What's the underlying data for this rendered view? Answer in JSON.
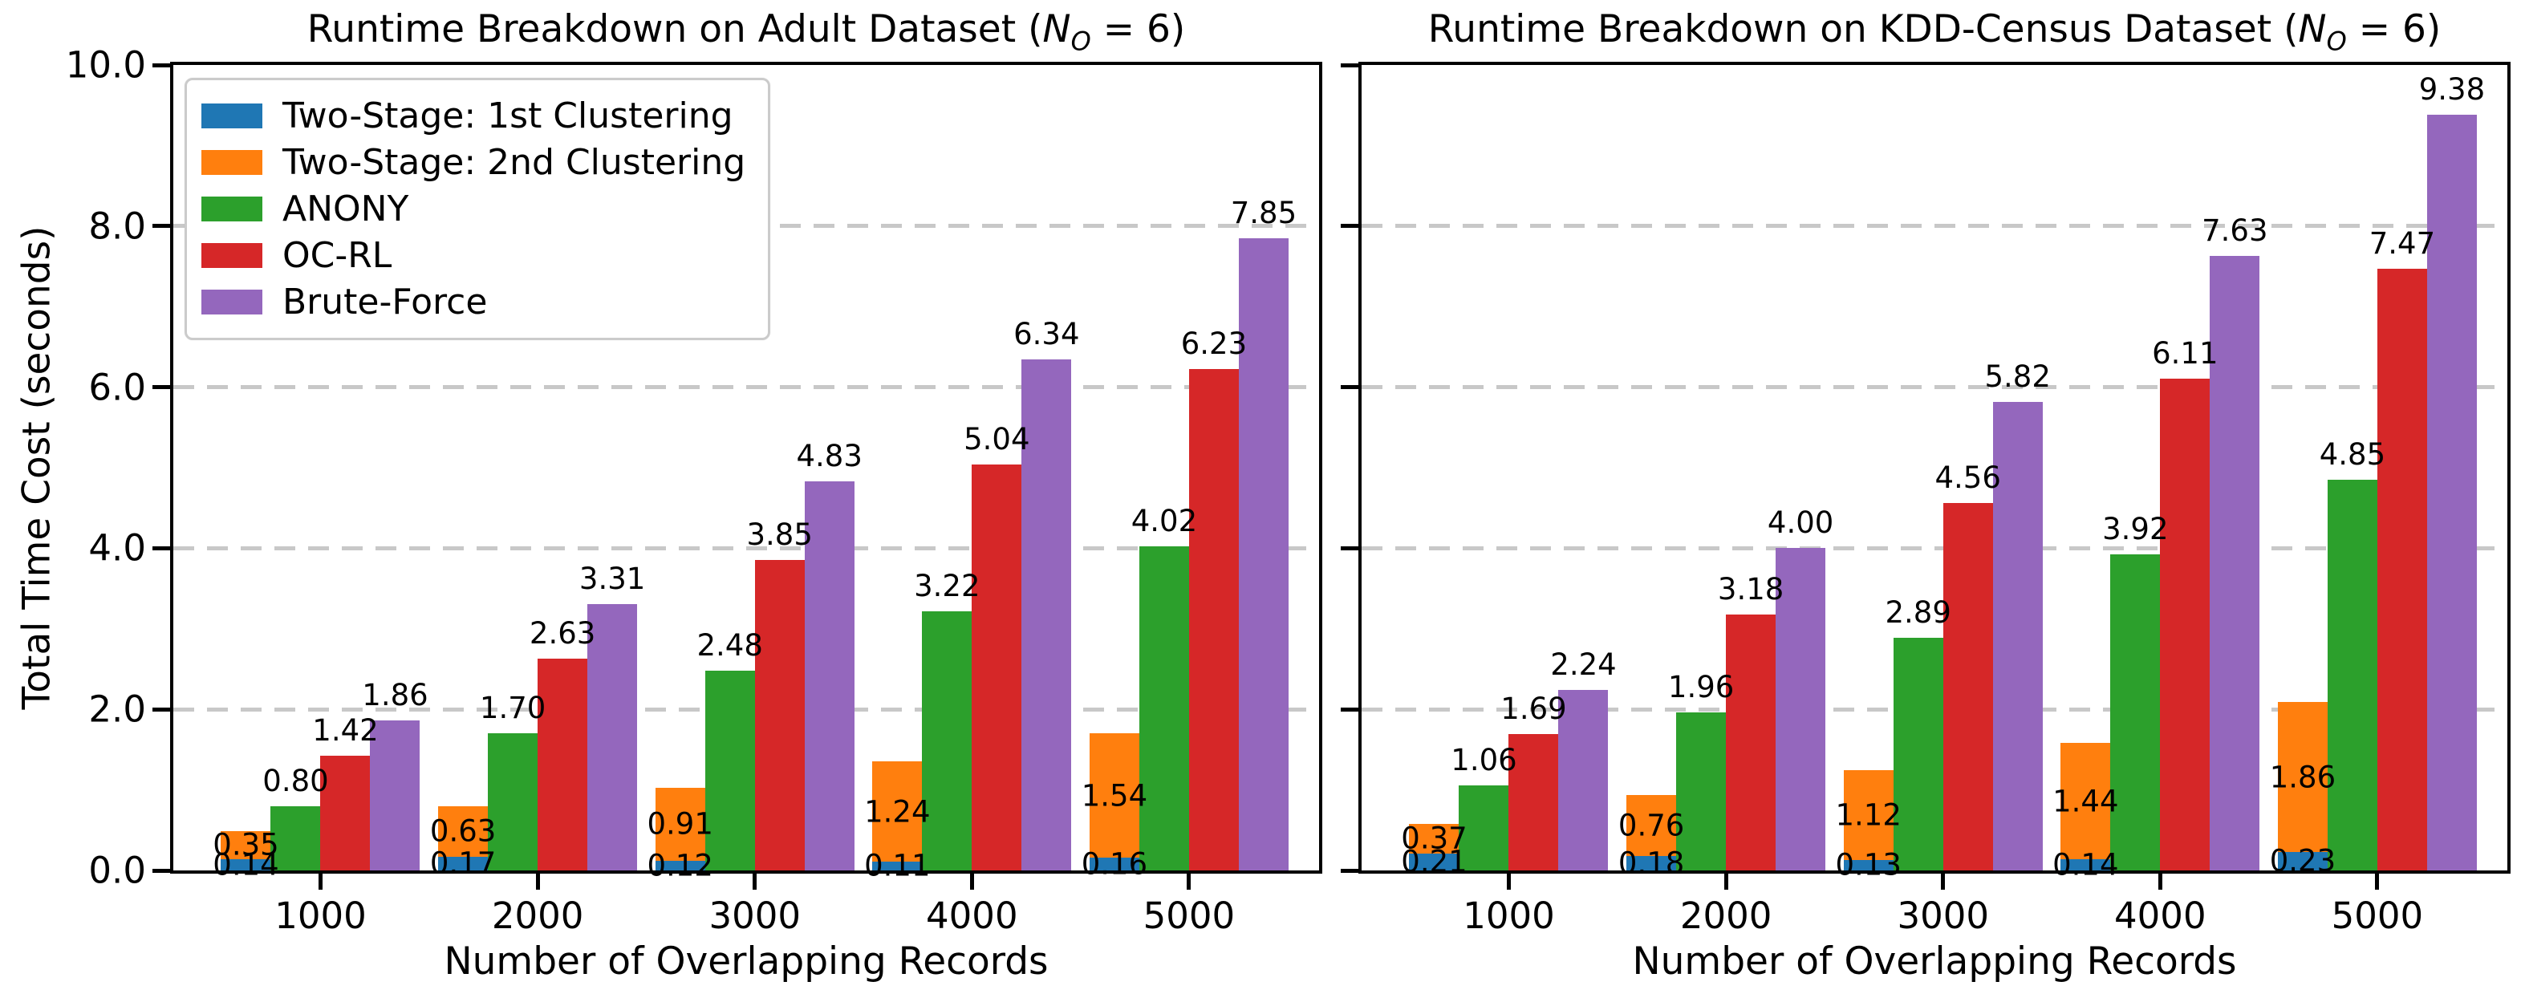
{
  "figure": {
    "background": "#ffffff",
    "ylabel": "Total Time Cost (seconds)",
    "xlabel": "Number of Overlapping Records",
    "legend": {
      "position": "upper-left of left chart",
      "items": [
        {
          "label": "Two-Stage: 1st Clustering",
          "color": "#1f77b4"
        },
        {
          "label": "Two-Stage: 2nd Clustering",
          "color": "#ff7f0e"
        },
        {
          "label": "ANONY",
          "color": "#2ca02c"
        },
        {
          "label": "OC-RL",
          "color": "#d62728"
        },
        {
          "label": "Brute-Force",
          "color": "#9467bd"
        }
      ]
    }
  },
  "chart_data": [
    {
      "type": "bar",
      "title": {
        "prefix": "Runtime Breakdown on Adult Dataset (",
        "var": "N",
        "sub": "O",
        "suffix": " = 6)"
      },
      "title_plain": "Runtime Breakdown on Adult Dataset (N_O = 6)",
      "xlabel": "Number of Overlapping Records",
      "ylabel": "Total Time Cost (seconds)",
      "categories": [
        "1000",
        "2000",
        "3000",
        "4000",
        "5000"
      ],
      "ylim": [
        0,
        10
      ],
      "yticks": [
        "0.0",
        "2.0",
        "4.0",
        "6.0",
        "8.0",
        "10.0"
      ],
      "grid": {
        "axis": "y",
        "style": "dashed",
        "color": "#c8c8c8"
      },
      "layout_note": "series 0 stacked under series 1 in first column; then ANONY, OC-RL, Brute-Force columns; stacked segment labels centered, other labels above bars",
      "series": [
        {
          "name": "Two-Stage: 1st Clustering",
          "color": "#1f77b4",
          "stack": "two-stage",
          "values": [
            0.14,
            0.17,
            0.12,
            0.11,
            0.16
          ]
        },
        {
          "name": "Two-Stage: 2nd Clustering",
          "color": "#ff7f0e",
          "stack": "two-stage",
          "values": [
            0.35,
            0.63,
            0.91,
            1.24,
            1.54
          ]
        },
        {
          "name": "ANONY",
          "color": "#2ca02c",
          "values": [
            0.8,
            1.7,
            2.48,
            3.22,
            4.02
          ]
        },
        {
          "name": "OC-RL",
          "color": "#d62728",
          "values": [
            1.42,
            2.63,
            3.85,
            5.04,
            6.23
          ]
        },
        {
          "name": "Brute-Force",
          "color": "#9467bd",
          "values": [
            1.86,
            3.31,
            4.83,
            6.34,
            7.85
          ]
        }
      ],
      "show_ytick_labels": true,
      "show_ylabel": true,
      "show_legend": true
    },
    {
      "type": "bar",
      "title": {
        "prefix": "Runtime Breakdown on KDD-Census Dataset (",
        "var": "N",
        "sub": "O",
        "suffix": " = 6)"
      },
      "title_plain": "Runtime Breakdown on KDD-Census Dataset (N_O = 6)",
      "xlabel": "Number of Overlapping Records",
      "ylabel": "",
      "categories": [
        "1000",
        "2000",
        "3000",
        "4000",
        "5000"
      ],
      "ylim": [
        0,
        10
      ],
      "yticks": [
        "0.0",
        "2.0",
        "4.0",
        "6.0",
        "8.0",
        "10.0"
      ],
      "grid": {
        "axis": "y",
        "style": "dashed",
        "color": "#c8c8c8"
      },
      "layout_note": "series 0 stacked under series 1 in first column; then ANONY, OC-RL, Brute-Force columns; stacked segment labels centered, other labels above bars",
      "series": [
        {
          "name": "Two-Stage: 1st Clustering",
          "color": "#1f77b4",
          "stack": "two-stage",
          "values": [
            0.21,
            0.18,
            0.13,
            0.14,
            0.23
          ]
        },
        {
          "name": "Two-Stage: 2nd Clustering",
          "color": "#ff7f0e",
          "stack": "two-stage",
          "values": [
            0.37,
            0.76,
            1.12,
            1.44,
            1.86
          ]
        },
        {
          "name": "ANONY",
          "color": "#2ca02c",
          "values": [
            1.06,
            1.96,
            2.89,
            3.92,
            4.85
          ]
        },
        {
          "name": "OC-RL",
          "color": "#d62728",
          "values": [
            1.69,
            3.18,
            4.56,
            6.11,
            7.47
          ]
        },
        {
          "name": "Brute-Force",
          "color": "#9467bd",
          "values": [
            2.24,
            4.0,
            5.82,
            7.63,
            9.38
          ]
        }
      ],
      "show_ytick_labels": false,
      "show_ylabel": false,
      "show_legend": false
    }
  ]
}
